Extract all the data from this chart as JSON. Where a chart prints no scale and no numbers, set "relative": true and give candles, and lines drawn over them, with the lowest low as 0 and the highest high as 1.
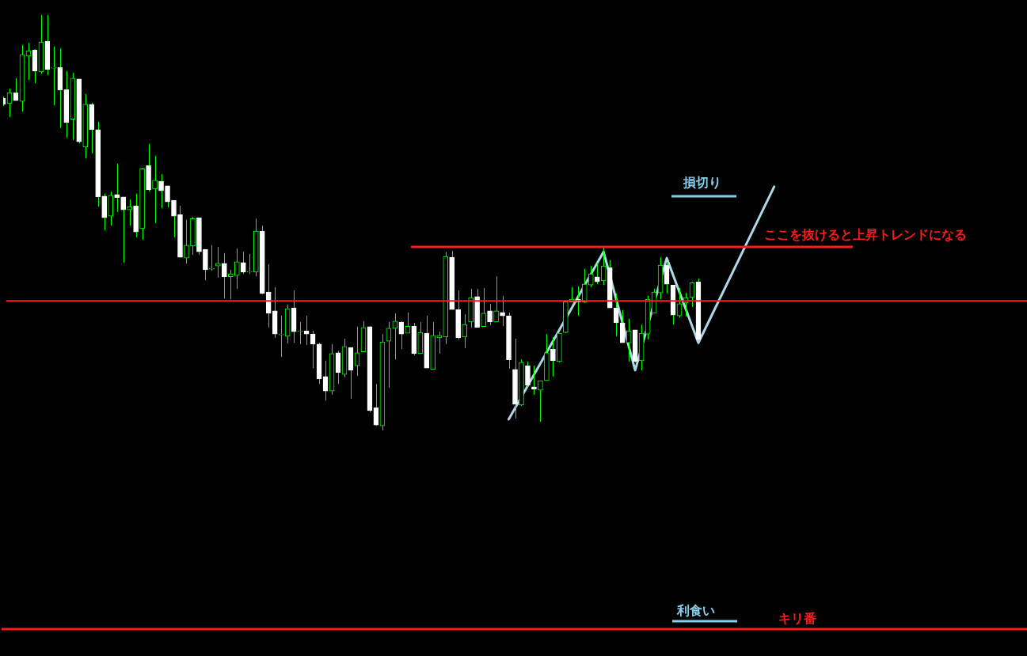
{
  "chart_data": {
    "type": "candlestick",
    "relative": true,
    "legend": false,
    "grid": false,
    "categories": [
      null,
      null,
      null,
      null,
      null,
      null,
      null,
      null,
      null,
      null,
      null,
      null,
      null,
      null,
      null,
      null,
      null,
      null,
      null,
      null,
      null,
      null,
      null,
      null,
      null,
      null,
      null,
      null,
      null,
      null,
      null,
      null,
      null,
      null,
      null,
      null,
      null,
      null,
      null,
      null,
      null,
      null,
      null,
      null,
      null,
      null,
      null,
      null,
      null,
      null,
      null,
      null,
      null,
      null,
      null,
      null,
      null,
      null,
      null,
      null,
      null,
      null,
      null,
      null,
      null,
      null,
      null,
      null,
      null,
      null,
      null,
      null,
      null,
      null,
      null,
      null,
      null,
      null,
      null,
      null,
      null,
      null,
      null,
      null,
      null,
      null,
      null,
      null,
      null,
      null,
      null,
      null,
      null,
      null,
      null,
      null,
      null,
      null,
      null,
      null,
      null,
      null,
      null,
      null,
      null,
      null,
      null,
      null,
      null,
      null,
      null,
      null,
      null,
      null,
      null,
      null,
      null,
      null,
      null,
      null,
      null,
      null,
      null,
      null,
      null,
      null,
      null,
      null,
      null,
      null,
      null,
      null,
      null,
      null,
      null,
      null,
      null,
      null,
      null,
      null,
      null,
      null,
      null,
      null,
      null,
      null,
      null,
      null,
      null,
      null,
      null,
      null,
      null,
      null,
      null,
      null,
      null,
      null,
      null,
      null,
      null,
      null,
      null
    ],
    "series": [
      {
        "type": "candlestick",
        "color": "#00ff00",
        "colors": [
          "#ffffff",
          "#00ff00",
          "#ffffff",
          "#00ff00",
          "#00ff00",
          "#ffffff",
          "#00ff00",
          "#ffffff",
          "#00ff00",
          "#ffffff",
          "#ffffff",
          "#00ff00",
          "#ffffff",
          "#00ff00",
          "#ffffff",
          "#ffffff",
          "#ffffff",
          "#00ff00",
          "#ffffff",
          "#ffffff",
          "#00ff00",
          "#ffffff",
          "#00ff00",
          "#ffffff",
          "#00ff00",
          "#ffffff",
          "#ffffff",
          "#ffffff",
          "#ffffff",
          "#00ff00",
          "#00ff00",
          "#ffffff",
          "#ffffff",
          "#00ff00",
          "#00ff00",
          "#ffffff",
          "#00ff00",
          "#00ff00",
          "#ffffff",
          "#00ff00",
          "#00ff00",
          "#ffffff",
          "#ffffff",
          "#ffffff",
          "#00ff00",
          "#00ff00",
          "#ffffff",
          "#00ff00",
          "#ffffff",
          "#ffffff",
          "#ffffff",
          "#ffffff",
          "#00ff00",
          "#ffffff",
          "#00ff00",
          "#ffffff",
          "#00ff00",
          "#00ff00",
          "#ffffff",
          "#ffffff",
          "#00ff00",
          "#00ff00",
          "#00ff00",
          "#ffffff",
          "#00ff00",
          "#ffffff",
          "#00ff00",
          "#ffffff",
          "#00ff00",
          "#00ff00",
          "#00ff00",
          "#ffffff",
          "#ffffff",
          "#00ff00",
          "#00ff00",
          "#ffffff",
          "#00ff00",
          "#ffffff",
          "#00ff00",
          "#ffffff",
          "#ffffff",
          "#ffffff",
          "#00ff00",
          "#ffffff",
          "#ffffff",
          "#00ff00",
          "#00ff00",
          "#ffffff",
          "#00ff00",
          "#00ff00",
          "#00ff00",
          "#ffffff",
          "#00ff00",
          "#00ff00",
          "#ffffff",
          "#00ff00",
          "#ffffff",
          "#ffffff",
          "#ffffff",
          "#00ff00",
          "#ffffff",
          "#00ff00",
          "#00ff00",
          "#00ff00",
          "#00ff00",
          "#ffffff",
          "#ffffff",
          "#00ff00",
          "#00ff00",
          "#00ff00",
          "#ffffff",
          null,
          null,
          null,
          null,
          null,
          null,
          null,
          null,
          null,
          null,
          null,
          null,
          null,
          null,
          null,
          null,
          null,
          null,
          null,
          null,
          null,
          null,
          null,
          null,
          null,
          null,
          null,
          null,
          null,
          null,
          null,
          null,
          null,
          null,
          null,
          null,
          null,
          null,
          null,
          null,
          null,
          null,
          null,
          null,
          null,
          null,
          null,
          null,
          null,
          null,
          null,
          null
        ],
        "ohlc": [
          [
            0.8,
            0.804,
            0.781,
            0.785
          ],
          [
            0.787,
            0.823,
            0.754,
            0.813
          ],
          [
            0.813,
            0.848,
            0.794,
            0.794
          ],
          [
            0.792,
            0.928,
            0.768,
            0.905
          ],
          [
            0.901,
            0.933,
            0.844,
            0.914
          ],
          [
            0.916,
            0.918,
            0.836,
            0.865
          ],
          [
            0.863,
            1.0,
            0.859,
            0.935
          ],
          [
            0.937,
            1.0,
            0.855,
            0.869
          ],
          [
            0.874,
            0.924,
            0.783,
            0.874
          ],
          [
            0.874,
            0.92,
            0.728,
            0.819
          ],
          [
            0.821,
            0.865,
            0.705,
            0.741
          ],
          [
            0.749,
            0.861,
            0.699,
            0.848
          ],
          [
            0.846,
            0.846,
            0.691,
            0.695
          ],
          [
            0.682,
            0.81,
            0.655,
            0.785
          ],
          [
            0.785,
            0.789,
            0.667,
            0.724
          ],
          [
            0.724,
            0.743,
            0.539,
            0.562
          ],
          [
            0.564,
            0.57,
            0.482,
            0.512
          ],
          [
            0.516,
            0.575,
            0.493,
            0.566
          ],
          [
            0.568,
            0.642,
            0.526,
            0.56
          ],
          [
            0.562,
            0.562,
            0.404,
            0.531
          ],
          [
            0.531,
            0.556,
            0.493,
            0.539
          ],
          [
            0.541,
            0.57,
            0.465,
            0.478
          ],
          [
            0.486,
            0.632,
            0.459,
            0.63
          ],
          [
            0.638,
            0.69,
            0.575,
            0.579
          ],
          [
            0.581,
            0.661,
            0.499,
            0.602
          ],
          [
            0.6,
            0.617,
            0.535,
            0.577
          ],
          [
            0.589,
            0.589,
            0.537,
            0.55
          ],
          [
            0.554,
            0.554,
            0.465,
            0.516
          ],
          [
            0.52,
            0.541,
            0.417,
            0.417
          ],
          [
            0.415,
            0.507,
            0.402,
            0.446
          ],
          [
            0.444,
            0.514,
            0.423,
            0.51
          ],
          [
            0.512,
            0.512,
            0.423,
            0.43
          ],
          [
            0.436,
            0.436,
            0.362,
            0.387
          ],
          [
            0.39,
            0.446,
            0.385,
            0.39
          ],
          [
            0.396,
            0.442,
            0.368,
            0.402
          ],
          [
            0.402,
            0.427,
            0.318,
            0.37
          ],
          [
            0.37,
            0.387,
            0.316,
            0.377
          ],
          [
            0.373,
            0.438,
            0.341,
            0.406
          ],
          [
            0.404,
            0.43,
            0.377,
            0.381
          ],
          [
            0.383,
            0.425,
            0.377,
            0.383
          ],
          [
            0.381,
            0.51,
            0.371,
            0.48
          ],
          [
            0.48,
            0.493,
            0.328,
            0.33
          ],
          [
            0.333,
            0.4,
            0.248,
            0.282
          ],
          [
            0.288,
            0.345,
            0.223,
            0.232
          ],
          [
            0.232,
            0.276,
            0.177,
            0.232
          ],
          [
            0.227,
            0.303,
            0.21,
            0.293
          ],
          [
            0.295,
            0.337,
            0.211,
            0.238
          ],
          [
            0.24,
            0.261,
            0.208,
            0.24
          ],
          [
            0.24,
            0.276,
            0.206,
            0.232
          ],
          [
            0.232,
            0.24,
            0.15,
            0.208
          ],
          [
            0.208,
            0.211,
            0.112,
            0.124
          ],
          [
            0.13,
            0.168,
            0.072,
            0.095
          ],
          [
            0.095,
            0.208,
            0.086,
            0.185
          ],
          [
            0.187,
            0.192,
            0.112,
            0.139
          ],
          [
            0.135,
            0.221,
            0.128,
            0.202
          ],
          [
            0.2,
            0.2,
            0.076,
            0.145
          ],
          [
            0.156,
            0.25,
            0.131,
            0.187
          ],
          [
            0.189,
            0.263,
            0.189,
            0.248
          ],
          [
            0.25,
            0.251,
            0.044,
            0.048
          ],
          [
            0.055,
            0.112,
            0.011,
            0.013
          ],
          [
            0.011,
            0.232,
            0,
            0.213
          ],
          [
            0.215,
            0.261,
            0.103,
            0.246
          ],
          [
            0.246,
            0.282,
            0.171,
            0.263
          ],
          [
            0.261,
            0.263,
            0.196,
            0.232
          ],
          [
            0.234,
            0.284,
            0.234,
            0.251
          ],
          [
            0.251,
            0.259,
            0.181,
            0.185
          ],
          [
            0.185,
            0.261,
            0.185,
            0.236
          ],
          [
            0.234,
            0.276,
            0.15,
            0.15
          ],
          [
            0.147,
            0.261,
            0.147,
            0.229
          ],
          [
            0.223,
            0.238,
            0.185,
            0.229
          ],
          [
            0.225,
            0.43,
            0.208,
            0.419
          ],
          [
            0.417,
            0.432,
            0.291,
            0.291
          ],
          [
            0.291,
            0.337,
            0.219,
            0.223
          ],
          [
            0.225,
            0.28,
            0.198,
            0.255
          ],
          [
            0.261,
            0.341,
            0.248,
            0.32
          ],
          [
            0.322,
            0.341,
            0.248,
            0.248
          ],
          [
            0.25,
            0.343,
            0.25,
            0.282
          ],
          [
            0.288,
            0.305,
            0.253,
            0.261
          ],
          [
            0.261,
            0.371,
            0.261,
            0.288
          ],
          [
            0.284,
            0.324,
            0.251,
            0.276
          ],
          [
            0.276,
            0.284,
            0.149,
            0.17
          ],
          [
            0.147,
            0.221,
            0.029,
            0.063
          ],
          [
            0.061,
            0.171,
            0.059,
            0.164
          ],
          [
            0.156,
            0.166,
            0.105,
            0.109
          ],
          [
            0.105,
            0.156,
            0.086,
            0.099
          ],
          [
            0.097,
            0.12,
            0.021,
            0.12
          ],
          [
            0.12,
            0.232,
            0.12,
            0.187
          ],
          [
            0.196,
            0.225,
            0.13,
            0.168
          ],
          [
            0.166,
            0.234,
            0.164,
            0.234
          ],
          [
            0.236,
            0.31,
            0.234,
            0.31
          ],
          [
            0.309,
            0.345,
            0.309,
            0.316
          ],
          [
            0.316,
            0.347,
            0.276,
            0.309
          ],
          [
            0.309,
            0.389,
            0.307,
            0.352
          ],
          [
            0.35,
            0.396,
            0.345,
            0.377
          ],
          [
            0.37,
            0.402,
            0.352,
            0.358
          ],
          [
            0.36,
            0.44,
            0.35,
            0.396
          ],
          [
            0.392,
            0.41,
            0.295,
            0.295
          ],
          [
            0.295,
            0.33,
            0.227,
            0.259
          ],
          [
            0.259,
            0.29,
            0.211,
            0.211
          ],
          [
            0.211,
            0.269,
            0.166,
            0.24
          ],
          [
            0.242,
            0.242,
            0.164,
            0.166
          ],
          [
            0.168,
            0.255,
            0.145,
            0.234
          ],
          [
            0.232,
            0.324,
            0.219,
            0.316
          ],
          [
            0.282,
            0.341,
            0.282,
            0.333
          ],
          [
            0.331,
            0.417,
            0.316,
            0.398
          ],
          [
            0.398,
            0.402,
            0.33,
            0.352
          ],
          [
            0.35,
            0.35,
            0.255,
            0.278
          ],
          [
            0.276,
            0.343,
            0.272,
            0.305
          ],
          [
            0.307,
            0.331,
            0.274,
            0.32
          ],
          [
            0.32,
            0.358,
            0.297,
            0.356
          ],
          [
            0.358,
            0.366,
            0.219,
            0.219
          ],
          null,
          null,
          null,
          null,
          null,
          null,
          null,
          null,
          null,
          null,
          null,
          null,
          null,
          null,
          null,
          null,
          null,
          null,
          null,
          null,
          null,
          null,
          null,
          null,
          null,
          null,
          null,
          null,
          null,
          null,
          null,
          null,
          null,
          null,
          null,
          null,
          null,
          null,
          null,
          null,
          null,
          null,
          null,
          null,
          null,
          null,
          null,
          null,
          null,
          null,
          null,
          null
        ]
      },
      {
        "type": "line",
        "color": "#add8e6",
        "marker": "none",
        "line_style": "solid",
        "values": [
          null,
          null,
          null,
          null,
          null,
          null,
          null,
          null,
          null,
          null,
          null,
          null,
          null,
          null,
          null,
          null,
          null,
          null,
          null,
          null,
          null,
          null,
          null,
          null,
          null,
          null,
          null,
          null,
          null,
          null,
          null,
          null,
          null,
          null,
          null,
          null,
          null,
          null,
          null,
          null,
          null,
          null,
          null,
          null,
          null,
          null,
          null,
          null,
          null,
          null,
          null,
          null,
          null,
          null,
          null,
          null,
          null,
          null,
          null,
          null,
          null,
          null,
          null,
          null,
          null,
          null,
          null,
          null,
          null,
          null,
          null,
          null,
          null,
          null,
          null,
          null,
          null,
          null,
          null,
          null,
          0.027,
          null,
          null,
          null,
          null,
          null,
          null,
          null,
          null,
          null,
          null,
          null,
          null,
          null,
          null,
          0.43,
          null,
          null,
          null,
          null,
          0.145,
          null,
          null,
          null,
          null,
          0.415,
          null,
          null,
          null,
          null,
          0.211,
          null,
          null,
          null,
          null,
          null,
          null,
          null,
          null,
          null,
          null,
          null,
          0.587,
          null,
          null,
          null,
          null,
          null,
          null,
          null,
          null,
          null,
          null,
          null,
          null,
          null,
          null,
          null,
          null,
          null,
          null,
          null,
          null,
          null,
          null,
          null,
          null,
          null,
          null,
          null,
          null,
          null,
          null,
          null,
          null,
          null,
          null,
          null,
          null,
          null,
          null,
          null,
          null
        ]
      }
    ],
    "ref_lines": [
      {
        "axis": "y",
        "value": 0.442,
        "label": "ここを抜けると上昇トレンドになる",
        "color": "#ff1a1a"
      },
      {
        "axis": "y",
        "value": 0.312,
        "color": "#ff1a1a"
      },
      {
        "axis": "y",
        "value": -0.478,
        "label": "キリ番",
        "color": "#ff1a1a"
      },
      {
        "axis": "y",
        "value": 0.564,
        "label": "損切り",
        "color": "#87ceeb"
      },
      {
        "axis": "y",
        "value": -0.459,
        "label": "利食い",
        "color": "#87ceeb"
      }
    ]
  }
}
